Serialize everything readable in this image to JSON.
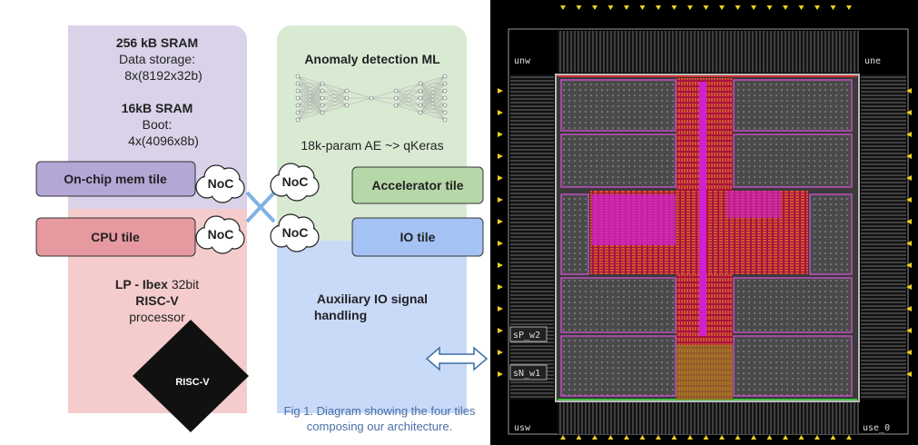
{
  "diagram": {
    "sram_main": {
      "title": "256 kB SRAM",
      "lines": [
        "Data storage:",
        "8x(8192x32b)"
      ]
    },
    "sram_boot": {
      "title": "16kB SRAM",
      "lines": [
        "Boot:",
        "4x(4096x8b)"
      ]
    },
    "tiles": [
      "On-chip mem tile",
      "CPU tile",
      "Accelerator tile",
      "IO tile"
    ],
    "noc": [
      "NoC",
      "NoC",
      "NoC",
      "NoC"
    ],
    "cpu": {
      "name": "LP - Ibex",
      "bits": "32bit",
      "isa": "RISC-V",
      "kind": "processor"
    },
    "logo": "RISC-V",
    "ml": {
      "title": "Anomaly detection ML",
      "model": "18k-param AE ~> qKeras"
    },
    "io": [
      "Auxiliary IO signal",
      "handling"
    ],
    "caption": [
      "Fig 1. Diagram showing the four tiles",
      "composing our architecture."
    ]
  },
  "chip_layout": {
    "labels": [
      "unw",
      "une",
      "sP_w2",
      "sN_w1",
      "usw",
      "use_0"
    ]
  }
}
